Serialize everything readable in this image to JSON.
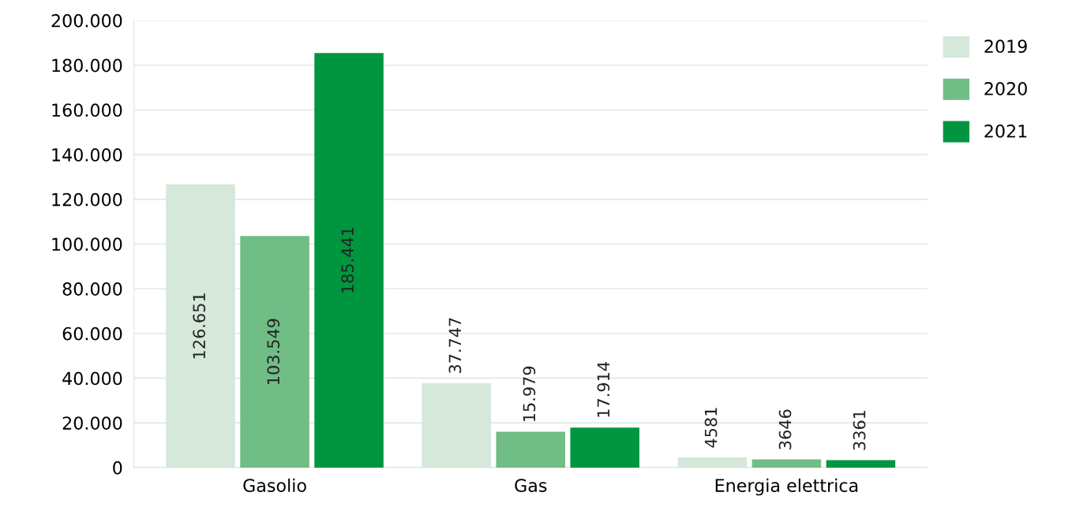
{
  "chart_data": {
    "type": "bar",
    "categories": [
      "Gasolio",
      "Gas",
      "Energia elettrica"
    ],
    "series": [
      {
        "name": "2019",
        "color": "#d5e8da",
        "values": [
          126651,
          37747,
          4581
        ],
        "value_labels": [
          "126.651",
          "37.747",
          "4581"
        ]
      },
      {
        "name": "2020",
        "color": "#70bd85",
        "values": [
          103549,
          15979,
          3646
        ],
        "value_labels": [
          "103.549",
          "15.979",
          "3646"
        ]
      },
      {
        "name": "2021",
        "color": "#00963f",
        "values": [
          185441,
          17914,
          3361
        ],
        "value_labels": [
          "185.441",
          "17.914",
          "3361"
        ]
      }
    ],
    "ylim": [
      0,
      200000
    ],
    "yticks": [
      {
        "value": 0,
        "label": "0"
      },
      {
        "value": 20000,
        "label": "20.000"
      },
      {
        "value": 40000,
        "label": "40.000"
      },
      {
        "value": 60000,
        "label": "60.000"
      },
      {
        "value": 80000,
        "label": "80.000"
      },
      {
        "value": 100000,
        "label": "100.000"
      },
      {
        "value": 120000,
        "label": "120.000"
      },
      {
        "value": 140000,
        "label": "140.000"
      },
      {
        "value": 160000,
        "label": "160.000"
      },
      {
        "value": 180000,
        "label": "180.000"
      },
      {
        "value": 200000,
        "label": "200.000"
      }
    ],
    "grid": "y",
    "legend": "top right"
  }
}
